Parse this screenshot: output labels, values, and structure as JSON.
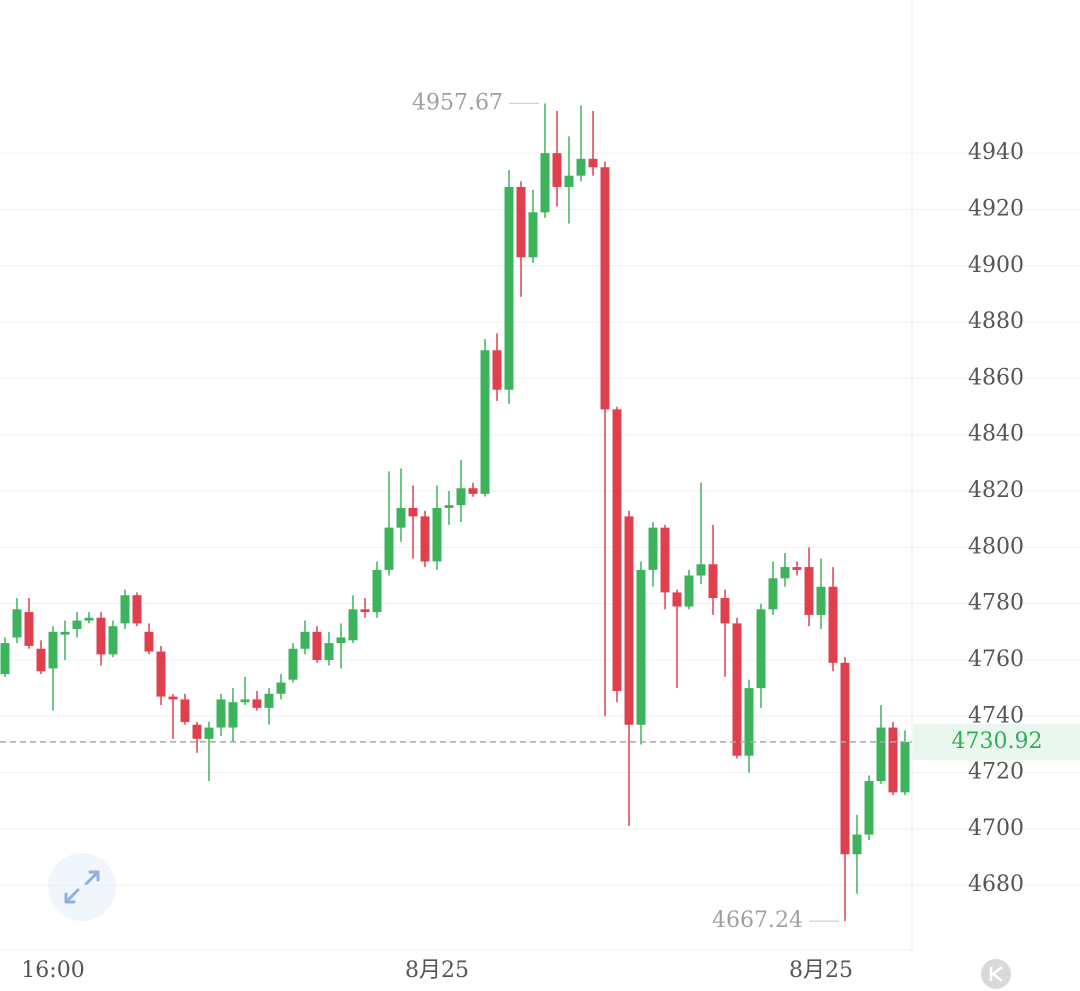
{
  "chart_data": {
    "type": "candlestick",
    "categories": [
      null,
      null,
      null,
      null,
      "16:00",
      null,
      null,
      null,
      null,
      null,
      null,
      null,
      null,
      null,
      null,
      null,
      null,
      null,
      null,
      null,
      null,
      null,
      null,
      null,
      null,
      null,
      null,
      null,
      null,
      null,
      null,
      null,
      null,
      null,
      null,
      null,
      "8月25",
      null,
      null,
      null,
      null,
      null,
      null,
      null,
      null,
      null,
      null,
      null,
      null,
      null,
      null,
      null,
      null,
      null,
      null,
      null,
      null,
      null,
      null,
      null,
      null,
      null,
      null,
      null,
      null,
      null,
      null,
      null,
      "8月25",
      null,
      null,
      null,
      null,
      null,
      null,
      null
    ],
    "open": [
      4755,
      4768,
      4777,
      4764,
      4757,
      4769,
      4771,
      4774,
      4775,
      4762,
      4773,
      4783,
      4770,
      4763,
      4747,
      4746,
      4737,
      4732,
      4736,
      4736,
      4745,
      4746,
      4743,
      4748,
      4753,
      4764,
      4770,
      4760,
      4766,
      4767,
      4778,
      4777,
      4792,
      4807,
      4814,
      4811,
      4795,
      4814,
      4815,
      4821,
      4819,
      4870,
      4856,
      4928,
      4903,
      4919,
      4940,
      4928,
      4932,
      4938,
      4935,
      4849,
      4811,
      4737,
      4792,
      4807,
      4784,
      4779,
      4790,
      4794,
      4782,
      4773,
      4726,
      4750,
      4778,
      4789,
      4793,
      4793,
      4776,
      4786,
      4759,
      4691,
      4698,
      4717,
      4736,
      4713
    ],
    "high": [
      4768,
      4782,
      4782,
      4767,
      4772,
      4774,
      4777,
      4777,
      4777,
      4774,
      4785,
      4784,
      4773,
      4765,
      4748,
      4748,
      4738,
      4738,
      4748,
      4750,
      4754,
      4749,
      4750,
      4755,
      4766,
      4774,
      4772,
      4770,
      4773,
      4783,
      4782,
      4795,
      4827,
      4828,
      4822,
      4813,
      4822,
      4820,
      4831,
      4823,
      4874,
      4876,
      4934,
      4930,
      4927,
      4957.67,
      4955,
      4946,
      4957,
      4955,
      4937,
      4850,
      4813,
      4795,
      4809,
      4808,
      4785,
      4792,
      4823,
      4808,
      4785,
      4775,
      4753,
      4780,
      4795,
      4798,
      4795,
      4800,
      4796,
      4793,
      4761,
      4705,
      4719,
      4744,
      4738,
      4735
    ],
    "low": [
      4754,
      4766,
      4764,
      4755,
      4742,
      4760,
      4768,
      4773,
      4758,
      4761,
      4771,
      4772,
      4762,
      4744,
      4732,
      4737,
      4727,
      4717,
      4733,
      4731,
      4744,
      4742,
      4737,
      4746,
      4752,
      4762,
      4759,
      4758,
      4757,
      4766,
      4775,
      4775,
      4790,
      4802,
      4796,
      4793,
      4792,
      4808,
      4809,
      4818,
      4818,
      4852,
      4851,
      4889,
      4901,
      4917,
      4921,
      4915,
      4930,
      4932,
      4740,
      4745,
      4701,
      4730,
      4786,
      4778,
      4750,
      4778,
      4787,
      4776,
      4754,
      4725,
      4720,
      4743,
      4776,
      4786,
      4790,
      4772,
      4771,
      4756,
      4667.24,
      4677,
      4696,
      4716,
      4712,
      4712
    ],
    "close": [
      4766,
      4778,
      4765,
      4756,
      4770,
      4770,
      4774,
      4775,
      4762,
      4772,
      4783,
      4773,
      4763,
      4747,
      4746,
      4738,
      4732,
      4736,
      4746,
      4745,
      4746,
      4743,
      4748,
      4752,
      4764,
      4770,
      4760,
      4766,
      4768,
      4778,
      4777,
      4792,
      4807,
      4814,
      4811,
      4795,
      4814,
      4815,
      4821,
      4819,
      4870,
      4856,
      4928,
      4903,
      4919,
      4940,
      4928,
      4932,
      4938,
      4935,
      4849,
      4749,
      4737,
      4792,
      4807,
      4784,
      4779,
      4790,
      4794,
      4782,
      4773,
      4726,
      4750,
      4778,
      4789,
      4793,
      4792,
      4776,
      4786,
      4759,
      4691,
      4698,
      4717,
      4736,
      4713,
      4730.92
    ],
    "up_color": "#3cb35c",
    "down_color": "#e0404e",
    "ylim": [
      4657,
      4994.4
    ],
    "yticks": [
      4680,
      4700,
      4720,
      4740,
      4760,
      4780,
      4800,
      4820,
      4840,
      4860,
      4880,
      4900,
      4920,
      4940
    ],
    "grid": true
  }
}
